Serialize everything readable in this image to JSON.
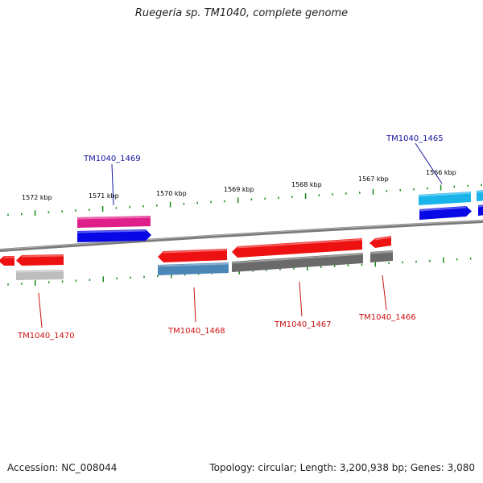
{
  "title": "Ruegeria sp. TM1040, complete genome",
  "footer": {
    "accession": "Accession: NC_008044",
    "summary": "Topology: circular; Length: 3,200,938 bp; Genes: 3,080"
  },
  "colors": {
    "backbone": "#808080",
    "tick": "#1a8a1a",
    "label_blue": "#1414a0",
    "label_red": "#cc1111",
    "red": "#ee1111",
    "magenta": "#e0208a",
    "blue": "#0808e6",
    "cyan": "#18b4ea",
    "steel": "#4a86b6",
    "gray": "#6a6a6a",
    "lightgray": "#bdbdbd"
  },
  "scale_labels": [
    "1572 kbp",
    "1571 kbp",
    "1570 kbp",
    "1569 kbp",
    "1568 kbp",
    "1567 kbp",
    "1566 kbp"
  ],
  "gene_labels": [
    {
      "name": "TM1040_1469",
      "color": "blue"
    },
    {
      "name": "TM1040_1465",
      "color": "blue"
    },
    {
      "name": "TM1040_1470",
      "color": "red"
    },
    {
      "name": "TM1040_1468",
      "color": "red"
    },
    {
      "name": "TM1040_1467",
      "color": "red"
    },
    {
      "name": "TM1040_1466",
      "color": "red"
    }
  ]
}
